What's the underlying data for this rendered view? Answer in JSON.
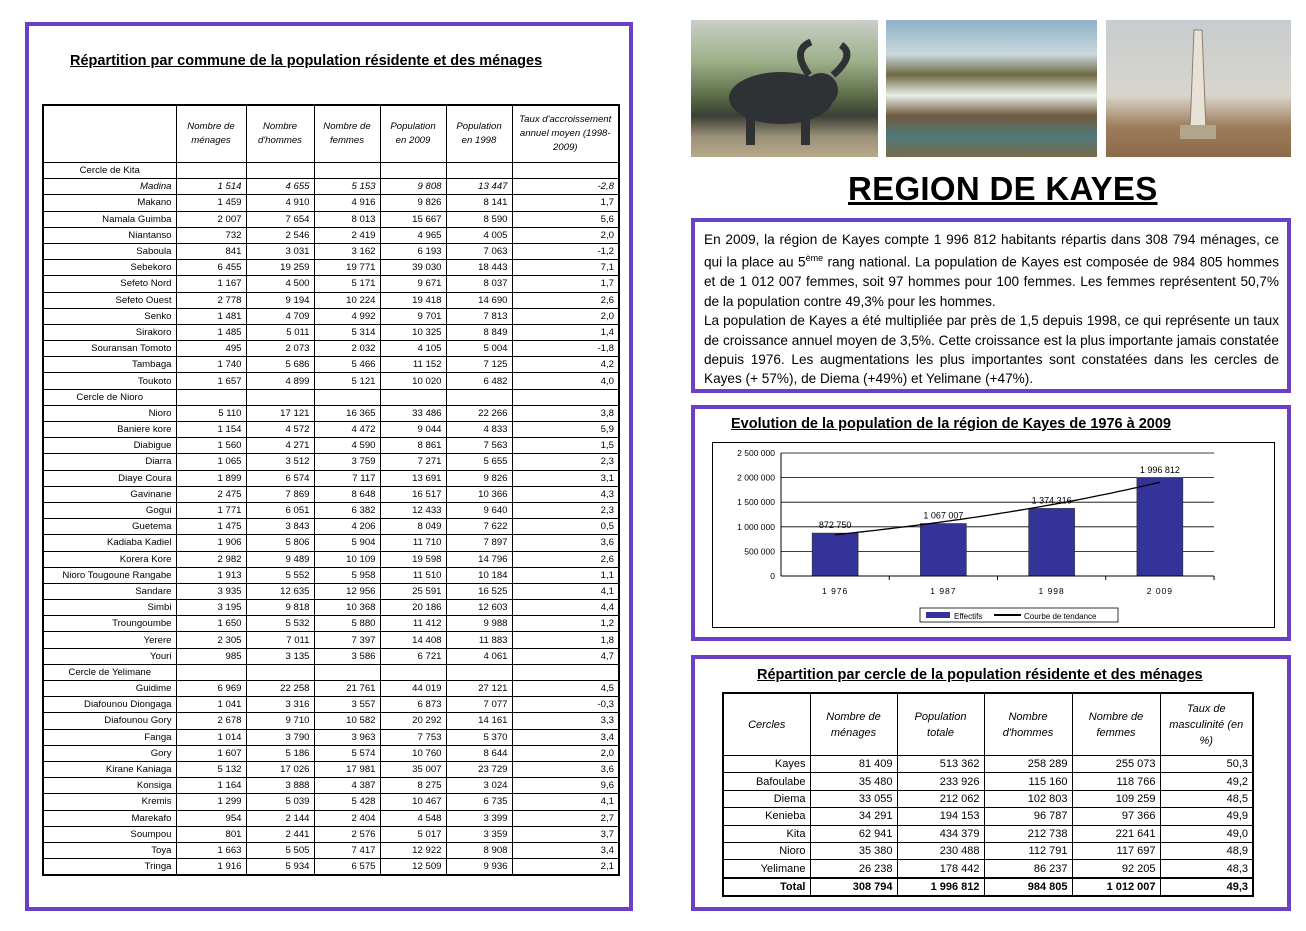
{
  "left": {
    "title": "Répartition par commune de la population résidente et des ménages",
    "headers": [
      "",
      "Nombre de ménages",
      "Nombre d'hommes",
      "Nombre de femmes",
      "Population en 2009",
      "Population en 1998",
      "Taux d'accroissement annuel moyen (1998-2009)"
    ],
    "groups": [
      {
        "name": "Cercle de Kita",
        "rows": [
          [
            "Madina",
            "1 514",
            "4 655",
            "5 153",
            "9 808",
            "13 447",
            "-2,8"
          ],
          [
            "Makano",
            "1 459",
            "4 910",
            "4 916",
            "9 826",
            "8 141",
            "1,7"
          ],
          [
            "Namala Guimba",
            "2 007",
            "7 654",
            "8 013",
            "15 667",
            "8 590",
            "5,6"
          ],
          [
            "Niantanso",
            "732",
            "2 546",
            "2 419",
            "4 965",
            "4 005",
            "2,0"
          ],
          [
            "Saboula",
            "841",
            "3 031",
            "3 162",
            "6 193",
            "7 063",
            "-1,2"
          ],
          [
            "Sebekoro",
            "6 455",
            "19 259",
            "19 771",
            "39 030",
            "18 443",
            "7,1"
          ],
          [
            "Sefeto Nord",
            "1 167",
            "4 500",
            "5 171",
            "9 671",
            "8 037",
            "1,7"
          ],
          [
            "Sefeto Ouest",
            "2 778",
            "9 194",
            "10 224",
            "19 418",
            "14 690",
            "2,6"
          ],
          [
            "Senko",
            "1 481",
            "4 709",
            "4 992",
            "9 701",
            "7 813",
            "2,0"
          ],
          [
            "Sirakoro",
            "1 485",
            "5 011",
            "5 314",
            "10 325",
            "8 849",
            "1,4"
          ],
          [
            "Souransan Tomoto",
            "495",
            "2 073",
            "2 032",
            "4 105",
            "5 004",
            "-1,8"
          ],
          [
            "Tambaga",
            "1 740",
            "5 686",
            "5 466",
            "11 152",
            "7 125",
            "4,2"
          ],
          [
            "Toukoto",
            "1 657",
            "4 899",
            "5 121",
            "10 020",
            "6 482",
            "4,0"
          ]
        ]
      },
      {
        "name": "Cercle de Nioro",
        "rows": [
          [
            "Nioro",
            "5 110",
            "17 121",
            "16 365",
            "33 486",
            "22 266",
            "3,8"
          ],
          [
            "Baniere kore",
            "1 154",
            "4 572",
            "4 472",
            "9 044",
            "4 833",
            "5,9"
          ],
          [
            "Diabigue",
            "1 560",
            "4 271",
            "4 590",
            "8 861",
            "7 563",
            "1,5"
          ],
          [
            "Diarra",
            "1 065",
            "3 512",
            "3 759",
            "7 271",
            "5 655",
            "2,3"
          ],
          [
            "Diaye Coura",
            "1 899",
            "6 574",
            "7 117",
            "13 691",
            "9 826",
            "3,1"
          ],
          [
            "Gavinane",
            "2 475",
            "7 869",
            "8 648",
            "16 517",
            "10 366",
            "4,3"
          ],
          [
            "Gogui",
            "1 771",
            "6 051",
            "6 382",
            "12 433",
            "9 640",
            "2,3"
          ],
          [
            "Guetema",
            "1 475",
            "3 843",
            "4 206",
            "8 049",
            "7 622",
            "0,5"
          ],
          [
            "Kadiaba Kadiel",
            "1 906",
            "5 806",
            "5 904",
            "11 710",
            "7 897",
            "3,6"
          ],
          [
            "Korera Kore",
            "2 982",
            "9 489",
            "10 109",
            "19 598",
            "14 796",
            "2,6"
          ],
          [
            "Nioro Tougoune Rangabe",
            "1 913",
            "5 552",
            "5 958",
            "11 510",
            "10 184",
            "1,1"
          ],
          [
            "Sandare",
            "3 935",
            "12 635",
            "12 956",
            "25 591",
            "16 525",
            "4,1"
          ],
          [
            "Simbi",
            "3 195",
            "9 818",
            "10 368",
            "20 186",
            "12 603",
            "4,4"
          ],
          [
            "Troungoumbe",
            "1 650",
            "5 532",
            "5 880",
            "11 412",
            "9 988",
            "1,2"
          ],
          [
            "Yerere",
            "2 305",
            "7 011",
            "7 397",
            "14 408",
            "11 883",
            "1,8"
          ],
          [
            "Youri",
            "985",
            "3 135",
            "3 586",
            "6 721",
            "4 061",
            "4,7"
          ]
        ]
      },
      {
        "name": "Cercle de Yelimane",
        "rows": [
          [
            "Guidime",
            "6 969",
            "22 258",
            "21 761",
            "44 019",
            "27 121",
            "4,5"
          ],
          [
            "Diafounou Diongaga",
            "1 041",
            "3 316",
            "3 557",
            "6 873",
            "7 077",
            "-0,3"
          ],
          [
            "Diafounou Gory",
            "2 678",
            "9 710",
            "10 582",
            "20 292",
            "14 161",
            "3,3"
          ],
          [
            "Fanga",
            "1 014",
            "3 790",
            "3 963",
            "7 753",
            "5 370",
            "3,4"
          ],
          [
            "Gory",
            "1 607",
            "5 186",
            "5 574",
            "10 760",
            "8 644",
            "2,0"
          ],
          [
            "Kirane Kaniaga",
            "5 132",
            "17 026",
            "17 981",
            "35 007",
            "23 729",
            "3,6"
          ],
          [
            "Konsiga",
            "1 164",
            "3 888",
            "4 387",
            "8 275",
            "3 024",
            "9,6"
          ],
          [
            "Kremis",
            "1 299",
            "5 039",
            "5 428",
            "10 467",
            "6 735",
            "4,1"
          ],
          [
            "Marekafo",
            "954",
            "2 144",
            "2 404",
            "4 548",
            "3 399",
            "2,7"
          ],
          [
            "Soumpou",
            "801",
            "2 441",
            "2 576",
            "5 017",
            "3 359",
            "3,7"
          ],
          [
            "Toya",
            "1 663",
            "5 505",
            "7 417",
            "12 922",
            "8 908",
            "3,4"
          ],
          [
            "Tringa",
            "1 916",
            "5 934",
            "6 575",
            "12 509",
            "9 936",
            "2,1"
          ]
        ]
      }
    ]
  },
  "photos": [
    "buffalo-statue-photo",
    "waterfall-photo",
    "obelisk-monument-photo"
  ],
  "region_title": "REGION DE KAYES",
  "intro": {
    "p1_a": "En 2009, la région de Kayes compte 1 996 812 habitants répartis dans 308 794 ménages, ce qui la place au 5",
    "p1_sup": "ème",
    "p1_b": " rang national. La population de Kayes est composée de 984 805 hommes et de 1 012 007 femmes, soit 97 hommes pour 100 femmes. Les femmes représentent 50,7% de la population contre 49,3% pour les hommes.",
    "p2": "La population de Kayes a été multipliée par près de 1,5 depuis 1998, ce qui représente un taux de croissance annuel moyen de 3,5%. Cette croissance est la plus importante jamais constatée depuis 1976. Les augmentations les plus importantes sont constatées dans les cercles de Kayes (+ 57%), de Diema (+49%) et Yelimane (+47%)."
  },
  "chart_data": {
    "type": "bar",
    "title": "Evolution de la population de la région de Kayes de 1976 à 2009",
    "categories": [
      "1976",
      "1987",
      "1998",
      "2009"
    ],
    "category_labels": [
      "1 976",
      "1 987",
      "1 998",
      "2 009"
    ],
    "series": [
      {
        "name": "Effectifs",
        "values": [
          872750,
          1067007,
          1374316,
          1996812
        ],
        "labels": [
          "872 750",
          "1 067 007",
          "1 374 316",
          "1 996 812"
        ],
        "color": "#333399"
      }
    ],
    "trendline": {
      "name": "Courbe de tendance",
      "color": "#000000"
    },
    "ylim": [
      0,
      2500000
    ],
    "yticks": [
      "0",
      "500 000",
      "1 000 000",
      "1 500 000",
      "2 000 000",
      "2 500 000"
    ],
    "grid": true,
    "legend": "bottom"
  },
  "right": {
    "title": "Répartition par cercle de la population résidente et des ménages",
    "headers": [
      "Cercles",
      "Nombre de ménages",
      "Population totale",
      "Nombre d'hommes",
      "Nombre de femmes",
      "Taux de masculinité (en %)"
    ],
    "rows": [
      [
        "Kayes",
        "81 409",
        "513 362",
        "258 289",
        "255 073",
        "50,3"
      ],
      [
        "Bafoulabe",
        "35 480",
        "233 926",
        "115 160",
        "118 766",
        "49,2"
      ],
      [
        "Diema",
        "33 055",
        "212 062",
        "102 803",
        "109 259",
        "48,5"
      ],
      [
        "Kenieba",
        "34 291",
        "194 153",
        "96 787",
        "97 366",
        "49,9"
      ],
      [
        "Kita",
        "62 941",
        "434 379",
        "212 738",
        "221 641",
        "49,0"
      ],
      [
        "Nioro",
        "35 380",
        "230 488",
        "112 791",
        "117 697",
        "48,9"
      ],
      [
        "Yelimane",
        "26 238",
        "178 442",
        "86 237",
        "92 205",
        "48,3"
      ]
    ],
    "total": [
      "Total",
      "308 794",
      "1 996 812",
      "984 805",
      "1 012 007",
      "49,3"
    ]
  },
  "colors": {
    "frame": "#6a40c8",
    "bar": "#333399"
  }
}
